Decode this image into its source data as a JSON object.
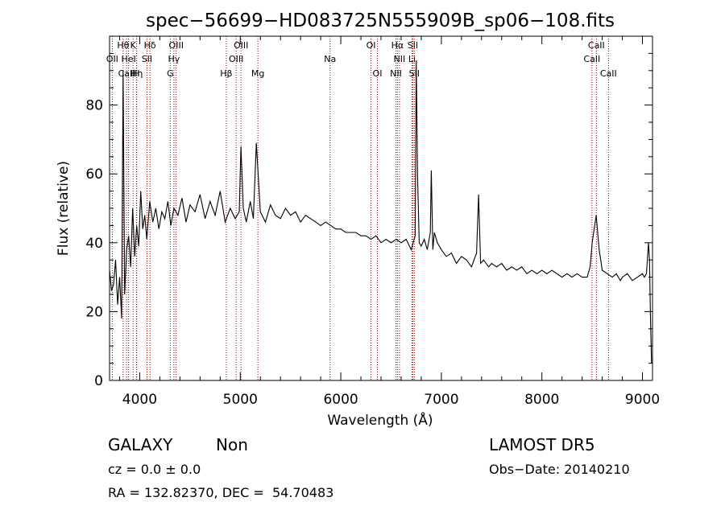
{
  "chart_data": {
    "type": "line",
    "title": "spec−56699−HD083725N555909B_sp06−108.fits",
    "xlabel": "Wavelength (Å)",
    "ylabel": "Flux (relative)",
    "xlim": [
      3700,
      9100
    ],
    "ylim": [
      0,
      100
    ],
    "xticks": [
      4000,
      5000,
      6000,
      7000,
      8000,
      9000
    ],
    "yticks": [
      0,
      20,
      40,
      60,
      80
    ],
    "grid": false,
    "line_color": "#000000",
    "marker_color": "#990000",
    "series": [
      {
        "x": [
          3700,
          3720,
          3740,
          3760,
          3780,
          3800,
          3820,
          3835,
          3850,
          3870,
          3890,
          3910,
          3930,
          3950,
          3970,
          3990,
          4010,
          4030,
          4050,
          4070,
          4100,
          4130,
          4160,
          4190,
          4220,
          4250,
          4280,
          4310,
          4340,
          4380,
          4420,
          4460,
          4500,
          4550,
          4600,
          4650,
          4700,
          4750,
          4800,
          4850,
          4900,
          4950,
          4990,
          5007,
          5030,
          5060,
          5100,
          5130,
          5160,
          5200,
          5250,
          5300,
          5350,
          5400,
          5450,
          5500,
          5550,
          5600,
          5650,
          5700,
          5750,
          5800,
          5850,
          5900,
          5950,
          6000,
          6050,
          6100,
          6150,
          6200,
          6250,
          6300,
          6350,
          6400,
          6450,
          6500,
          6550,
          6600,
          6650,
          6700,
          6720,
          6740,
          6750,
          6763,
          6780,
          6800,
          6830,
          6860,
          6890,
          6900,
          6915,
          6930,
          6960,
          7000,
          7050,
          7100,
          7150,
          7200,
          7250,
          7300,
          7350,
          7370,
          7390,
          7420,
          7470,
          7500,
          7550,
          7600,
          7650,
          7700,
          7750,
          7800,
          7850,
          7900,
          7950,
          8000,
          8050,
          8100,
          8150,
          8200,
          8250,
          8300,
          8350,
          8400,
          8450,
          8480,
          8500,
          8540,
          8570,
          8600,
          8650,
          8700,
          8740,
          8760,
          8780,
          8800,
          8850,
          8900,
          8950,
          9000,
          9020,
          9040,
          9060,
          9070,
          9080,
          9090
        ],
        "y": [
          32,
          26,
          28,
          35,
          22,
          30,
          18,
          90,
          25,
          38,
          42,
          33,
          50,
          36,
          45,
          39,
          55,
          44,
          48,
          41,
          52,
          46,
          50,
          44,
          49,
          47,
          52,
          45,
          50,
          48,
          53,
          46,
          51,
          49,
          54,
          47,
          52,
          48,
          55,
          46,
          50,
          47,
          49,
          68,
          50,
          46,
          52,
          47,
          69,
          49,
          46,
          51,
          48,
          47,
          50,
          48,
          49,
          46,
          48,
          47,
          46,
          45,
          46,
          45,
          44,
          44,
          43,
          43,
          43,
          42,
          42,
          41,
          42,
          40,
          41,
          40,
          41,
          40,
          41,
          38,
          40,
          42,
          93,
          60,
          40,
          39,
          41,
          38,
          43,
          61,
          38,
          43,
          40,
          38,
          36,
          37,
          34,
          36,
          35,
          33,
          37,
          54,
          34,
          35,
          33,
          34,
          33,
          34,
          32,
          33,
          32,
          33,
          31,
          32,
          31,
          32,
          31,
          32,
          31,
          30,
          31,
          30,
          31,
          30,
          30,
          33,
          40,
          48,
          38,
          32,
          31,
          30,
          31,
          30,
          29,
          30,
          31,
          29,
          30,
          31,
          30,
          31,
          40,
          35,
          18,
          5
        ]
      }
    ],
    "lines": [
      {
        "x": 3727,
        "label": "OII",
        "row": 1
      },
      {
        "x": 3835,
        "label": "Hθ",
        "row": 0
      },
      {
        "x": 3869,
        "label": "CaII",
        "row": 2
      },
      {
        "x": 3889,
        "label": "HeI",
        "row": 1
      },
      {
        "x": 3934,
        "label": "K",
        "row": 0
      },
      {
        "x": 3968,
        "label": "H",
        "row": 2
      },
      {
        "x": 3970,
        "label": "Hη",
        "row": 2
      },
      {
        "x": 4102,
        "label": "Hδ",
        "row": 0
      },
      {
        "x": 4072,
        "label": "SII",
        "row": 1
      },
      {
        "x": 4304,
        "label": "G",
        "row": 2
      },
      {
        "x": 4340,
        "label": "Hγ",
        "row": 1
      },
      {
        "x": 4363,
        "label": "OIII",
        "row": 0
      },
      {
        "x": 4861,
        "label": "Hβ",
        "row": 2
      },
      {
        "x": 4959,
        "label": "OIII",
        "row": 1
      },
      {
        "x": 5007,
        "label": "OIII",
        "row": 0
      },
      {
        "x": 5175,
        "label": "Mg",
        "row": 2
      },
      {
        "x": 5893,
        "label": "Na",
        "row": 1
      },
      {
        "x": 6300,
        "label": "OI",
        "row": 0
      },
      {
        "x": 6364,
        "label": "OI",
        "row": 2
      },
      {
        "x": 6548,
        "label": "NII",
        "row": 2
      },
      {
        "x": 6563,
        "label": "Hα",
        "row": 0
      },
      {
        "x": 6583,
        "label": "NII",
        "row": 1
      },
      {
        "x": 6708,
        "label": "Li",
        "row": 1
      },
      {
        "x": 6716,
        "label": "SII",
        "row": 0
      },
      {
        "x": 6731,
        "label": "SII",
        "row": 2
      },
      {
        "x": 8498,
        "label": "CaII",
        "row": 1
      },
      {
        "x": 8542,
        "label": "CaII",
        "row": 0
      },
      {
        "x": 8662,
        "label": "CaII",
        "row": 2
      }
    ]
  },
  "footer": {
    "class_label": "GALAXY",
    "subclass_label": "Non",
    "cz_text": "cz = 0.0 ± 0.0",
    "radec_text": "RA = 132.82370, DEC =  54.70483",
    "survey_label": "LAMOST DR5",
    "obs_date_text": "Obs−Date: 20140210"
  }
}
